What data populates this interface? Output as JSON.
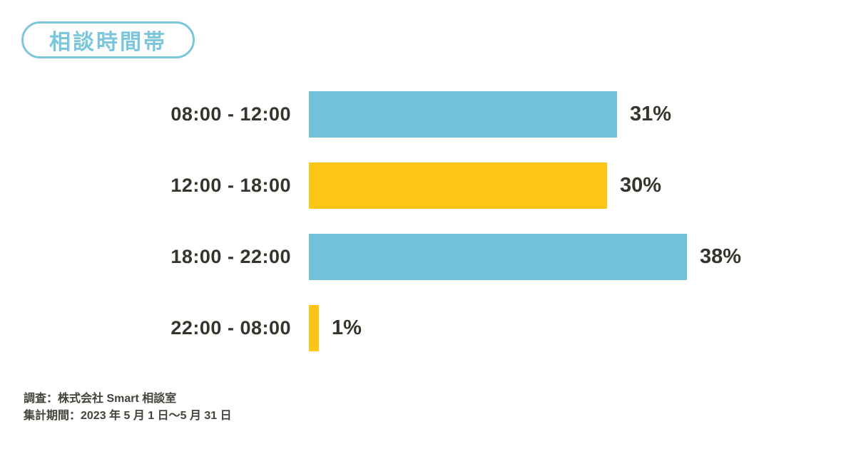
{
  "title": "相談時間帯",
  "colors": {
    "accent_blue": "#7bc6dc",
    "bar_blue": "#73c1d8",
    "bar_yellow": "#fcc617",
    "text_dark": "#36342c",
    "footer_text": "#45423a",
    "background": "#ffffff"
  },
  "chart_data": {
    "type": "bar",
    "orientation": "horizontal",
    "title": "相談時間帯",
    "xlabel": "",
    "ylabel": "",
    "unit": "%",
    "xlim": [
      0,
      38
    ],
    "grid": false,
    "legend": false,
    "categories": [
      "08:00 - 12:00",
      "12:00 - 18:00",
      "18:00 - 22:00",
      "22:00 - 08:00"
    ],
    "values": [
      31,
      30,
      38,
      1
    ],
    "rows": [
      {
        "label": "08:00 - 12:00",
        "value": 31,
        "value_label": "31%",
        "color": "#73c1d8"
      },
      {
        "label": "12:00 - 18:00",
        "value": 30,
        "value_label": "30%",
        "color": "#fcc617"
      },
      {
        "label": "18:00 - 22:00",
        "value": 38,
        "value_label": "38%",
        "color": "#73c1d8"
      },
      {
        "label": "22:00 - 08:00",
        "value": 1,
        "value_label": "1%",
        "color": "#fcc617"
      }
    ]
  },
  "footer": {
    "line1": "調査：株式会社 Smart 相談室",
    "line2": "集計期間：2023 年 5 月 1 日〜5 月 31 日"
  }
}
